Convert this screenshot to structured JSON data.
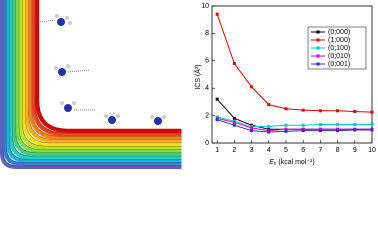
{
  "chart_data": {
    "type": "line",
    "y_label": "ICS (Å²)",
    "x_label": "E",
    "x_label_sub": "c",
    "x_label_unit": " (kcal mol⁻¹)",
    "x": [
      1,
      2,
      3,
      4,
      5,
      6,
      7,
      8,
      9,
      10
    ],
    "xlim": [
      0.7,
      10
    ],
    "xticks": [
      1,
      2,
      3,
      4,
      5,
      6,
      7,
      8,
      9,
      10
    ],
    "ylim": [
      0,
      10
    ],
    "yticks": [
      0,
      2,
      4,
      6,
      8,
      10
    ],
    "legend": "upper right",
    "series": [
      {
        "name": "(0;000)",
        "color": "#000000",
        "values": [
          3.2,
          1.8,
          1.3,
          1.0,
          1.0,
          1.0,
          1.0,
          1.0,
          1.0,
          1.0
        ]
      },
      {
        "name": "(1;000)",
        "color": "#e00000",
        "values": [
          9.4,
          5.8,
          4.1,
          2.8,
          2.5,
          2.4,
          2.35,
          2.35,
          2.3,
          2.25
        ]
      },
      {
        "name": "(0;100)",
        "color": "#00c8d0",
        "values": [
          1.9,
          1.6,
          1.2,
          1.2,
          1.3,
          1.3,
          1.35,
          1.35,
          1.35,
          1.35
        ]
      },
      {
        "name": "(0;010)",
        "color": "#e000c0",
        "values": [
          1.8,
          1.5,
          1.1,
          0.9,
          1.0,
          1.0,
          1.0,
          1.0,
          1.0,
          1.0
        ]
      },
      {
        "name": "(0;001)",
        "color": "#3030c0",
        "values": [
          1.7,
          1.3,
          0.9,
          0.8,
          0.85,
          0.9,
          0.9,
          0.9,
          0.95,
          0.95
        ]
      }
    ]
  }
}
